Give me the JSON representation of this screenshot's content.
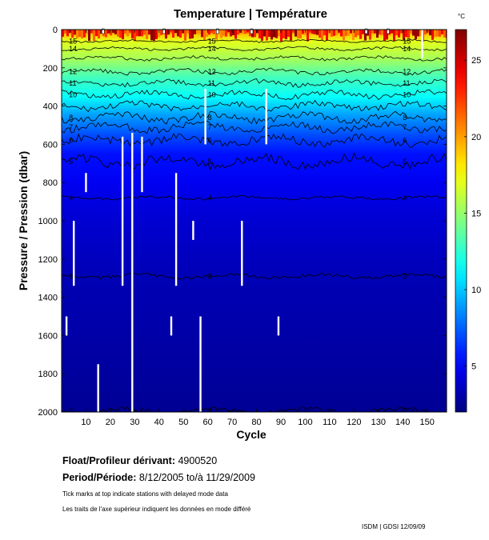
{
  "chart_data": {
    "type": "heatmap",
    "title": "Temperature | Température",
    "xlabel": "Cycle",
    "ylabel": "Pressure / Pression (dbar)",
    "xlim": [
      0,
      158
    ],
    "ylim": [
      2000,
      0
    ],
    "x_ticks": [
      10,
      20,
      30,
      40,
      50,
      60,
      70,
      80,
      90,
      100,
      110,
      120,
      130,
      140,
      150
    ],
    "y_ticks": [
      0,
      200,
      400,
      600,
      800,
      1000,
      1200,
      1400,
      1600,
      1800,
      2000
    ],
    "colorbar": {
      "unit": "°C",
      "range": [
        2,
        27
      ],
      "ticks": [
        5,
        10,
        15,
        20,
        25
      ]
    },
    "temperature_profile": [
      {
        "pressure": 0,
        "temperature": 25
      },
      {
        "pressure": 25,
        "temperature": 19
      },
      {
        "pressure": 60,
        "temperature": 17
      },
      {
        "pressure": 150,
        "temperature": 15.5
      },
      {
        "pressure": 250,
        "temperature": 13
      },
      {
        "pressure": 350,
        "temperature": 11.5
      },
      {
        "pressure": 450,
        "temperature": 9
      },
      {
        "pressure": 550,
        "temperature": 7
      },
      {
        "pressure": 650,
        "temperature": 5.5
      },
      {
        "pressure": 800,
        "temperature": 4.8
      },
      {
        "pressure": 1000,
        "temperature": 4
      },
      {
        "pressure": 1300,
        "temperature": 3.3
      },
      {
        "pressure": 1600,
        "temperature": 3
      },
      {
        "pressure": 2000,
        "temperature": 2.5
      }
    ],
    "contours": [
      {
        "level": 15,
        "pressure": 60,
        "label": "15"
      },
      {
        "level": 14,
        "pressure": 100,
        "label": "14"
      },
      {
        "level": 13,
        "pressure": 150,
        "label": ""
      },
      {
        "level": 12,
        "pressure": 220,
        "label": "12"
      },
      {
        "level": 11,
        "pressure": 280,
        "label": "11"
      },
      {
        "level": 10,
        "pressure": 340,
        "label": "10"
      },
      {
        "level": 9,
        "pressure": 400,
        "label": ""
      },
      {
        "level": 8,
        "pressure": 460,
        "label": "8"
      },
      {
        "level": 7,
        "pressure": 510,
        "label": "7"
      },
      {
        "level": 6,
        "pressure": 580,
        "label": "6"
      },
      {
        "level": 5,
        "pressure": 690,
        "label": "5"
      },
      {
        "level": 4,
        "pressure": 880,
        "label": "4"
      },
      {
        "level": 3,
        "pressure": 1290,
        "label": "3"
      },
      {
        "level": 2,
        "pressure": 1995,
        "label": "2"
      }
    ],
    "missing_data_gaps": [
      {
        "cycle": 5,
        "p_start": 1000,
        "p_end": 1340
      },
      {
        "cycle": 10,
        "p_start": 750,
        "p_end": 850
      },
      {
        "cycle": 15,
        "p_start": 1750,
        "p_end": 2000
      },
      {
        "cycle": 25,
        "p_start": 560,
        "p_end": 1340
      },
      {
        "cycle": 29,
        "p_start": 540,
        "p_end": 2000
      },
      {
        "cycle": 33,
        "p_start": 560,
        "p_end": 850
      },
      {
        "cycle": 2,
        "p_start": 1500,
        "p_end": 1600
      },
      {
        "cycle": 45,
        "p_start": 1500,
        "p_end": 1600
      },
      {
        "cycle": 47,
        "p_start": 750,
        "p_end": 1340
      },
      {
        "cycle": 54,
        "p_start": 1000,
        "p_end": 1100
      },
      {
        "cycle": 57,
        "p_start": 1500,
        "p_end": 2000
      },
      {
        "cycle": 59,
        "p_start": 310,
        "p_end": 600
      },
      {
        "cycle": 74,
        "p_start": 1000,
        "p_end": 1340
      },
      {
        "cycle": 84,
        "p_start": 310,
        "p_end": 600
      },
      {
        "cycle": 89,
        "p_start": 1500,
        "p_end": 1600
      },
      {
        "cycle": 148,
        "p_start": 0,
        "p_end": 150
      }
    ],
    "delayed_mode_ticks": [
      17,
      42,
      64,
      78,
      125,
      134
    ]
  },
  "info": {
    "float_label": "Float/Profileur dérivant:",
    "float_value": "4900520",
    "period_label": "Period/Période:",
    "period_value": "8/12/2005  to/à  11/29/2009",
    "note_en": "Tick marks at top indicate stations with delayed mode data",
    "note_fr": "Les traits de l'axe supérieur indiquent les données en mode différé",
    "footer": "ISDM | GDSI  12/09/09"
  }
}
